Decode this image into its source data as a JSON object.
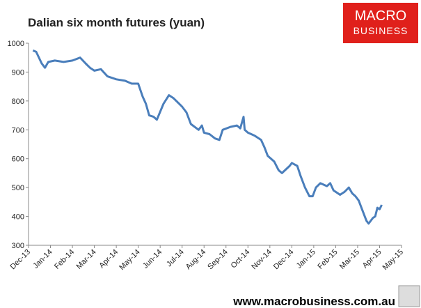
{
  "chart_data": {
    "type": "line",
    "title": "Dalian six month futures (yuan)",
    "xlim": [
      0,
      17
    ],
    "xticks": [
      {
        "value": 0,
        "label": "Dec-13"
      },
      {
        "value": 1,
        "label": "Jan-14"
      },
      {
        "value": 2,
        "label": "Feb-14"
      },
      {
        "value": 3,
        "label": "Mar-14"
      },
      {
        "value": 4,
        "label": "Apr-14"
      },
      {
        "value": 5,
        "label": "May-14"
      },
      {
        "value": 6,
        "label": "Jun-14"
      },
      {
        "value": 7,
        "label": "Jul-14"
      },
      {
        "value": 8,
        "label": "Aug-14"
      },
      {
        "value": 9,
        "label": "Sep-14"
      },
      {
        "value": 10,
        "label": "Oct-14"
      },
      {
        "value": 11,
        "label": "Nov-14"
      },
      {
        "value": 12,
        "label": "Dec-14"
      },
      {
        "value": 13,
        "label": "Jan-15"
      },
      {
        "value": 14,
        "label": "Feb-15"
      },
      {
        "value": 15,
        "label": "Mar-15"
      },
      {
        "value": 16,
        "label": "Apr-15"
      },
      {
        "value": 17,
        "label": "May-15"
      }
    ],
    "ylim": [
      300,
      1000
    ],
    "yticks": [
      300,
      400,
      500,
      600,
      700,
      800,
      900,
      1000
    ],
    "series": [
      {
        "color": "#4a7ebb",
        "x": [
          0.2,
          0.35,
          0.6,
          0.75,
          0.9,
          1.2,
          1.6,
          2.0,
          2.35,
          2.6,
          2.8,
          3.0,
          3.3,
          3.6,
          4.0,
          4.4,
          4.7,
          5.0,
          5.2,
          5.35,
          5.5,
          5.7,
          5.85,
          6.15,
          6.4,
          6.6,
          7.0,
          7.2,
          7.4,
          7.75,
          7.9,
          8.0,
          8.25,
          8.5,
          8.7,
          8.85,
          9.2,
          9.5,
          9.65,
          9.8,
          9.85,
          10.0,
          10.3,
          10.6,
          10.75,
          10.9,
          11.2,
          11.4,
          11.55,
          11.9,
          12.0,
          12.25,
          12.4,
          12.6,
          12.8,
          12.95,
          13.1,
          13.3,
          13.6,
          13.75,
          13.9,
          14.2,
          14.4,
          14.6,
          14.75,
          14.9,
          15.05,
          15.2,
          15.4,
          15.5,
          15.7,
          15.8,
          15.9,
          16.0,
          16.1
        ],
        "values": [
          975,
          970,
          930,
          915,
          935,
          940,
          935,
          940,
          950,
          930,
          915,
          905,
          910,
          885,
          875,
          870,
          860,
          860,
          815,
          790,
          750,
          745,
          735,
          790,
          820,
          810,
          780,
          760,
          720,
          700,
          715,
          690,
          685,
          670,
          665,
          700,
          710,
          715,
          705,
          745,
          700,
          690,
          680,
          665,
          640,
          610,
          590,
          560,
          550,
          575,
          585,
          575,
          540,
          500,
          470,
          470,
          500,
          515,
          505,
          515,
          490,
          475,
          485,
          500,
          480,
          470,
          455,
          425,
          385,
          375,
          395,
          400,
          430,
          425,
          440
        ]
      }
    ]
  },
  "logo": {
    "line1": "MACRO",
    "line2": "BUSINESS"
  },
  "footer": "www.macrobusiness.com.au"
}
